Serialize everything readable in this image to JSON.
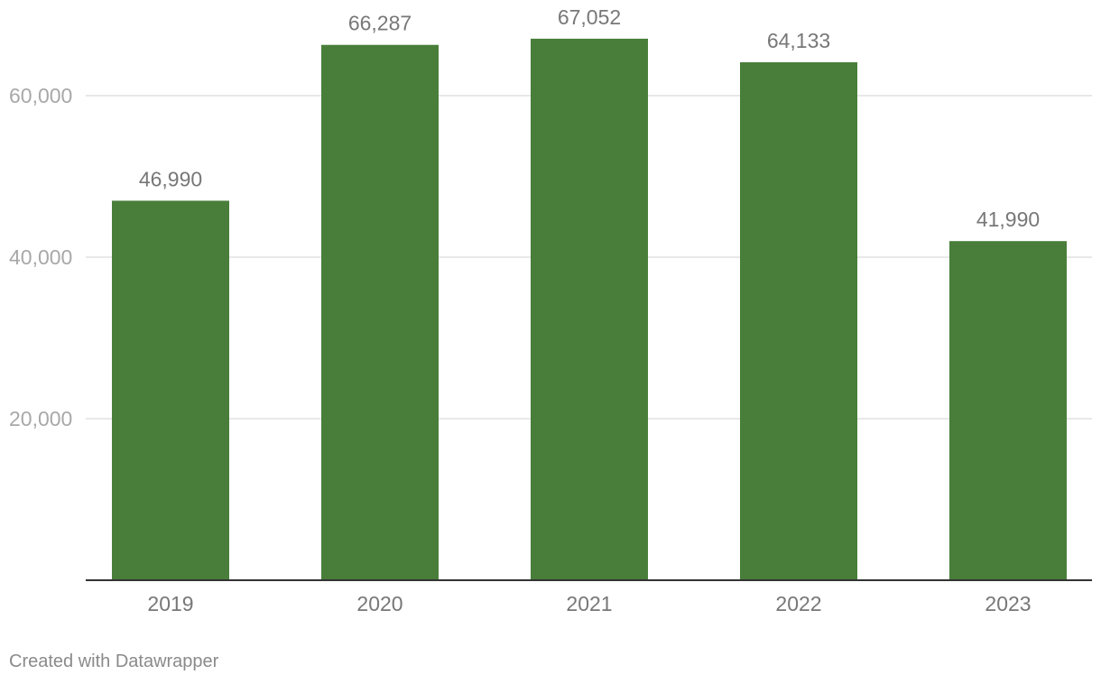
{
  "chart_data": {
    "type": "bar",
    "categories": [
      "2019",
      "2020",
      "2021",
      "2022",
      "2023"
    ],
    "values": [
      46990,
      66287,
      67052,
      64133,
      41990
    ],
    "value_labels": [
      "46,990",
      "66,287",
      "67,052",
      "64,133",
      "41,990"
    ],
    "title": "",
    "xlabel": "",
    "ylabel": "",
    "ylim": [
      0,
      70000
    ],
    "y_ticks": [
      20000,
      40000,
      60000
    ],
    "y_tick_labels": [
      "20,000",
      "40,000",
      "60,000"
    ],
    "grid": true,
    "legend": "none",
    "bar_color": "#487e3a"
  },
  "footer": {
    "credit": "Created with Datawrapper"
  }
}
